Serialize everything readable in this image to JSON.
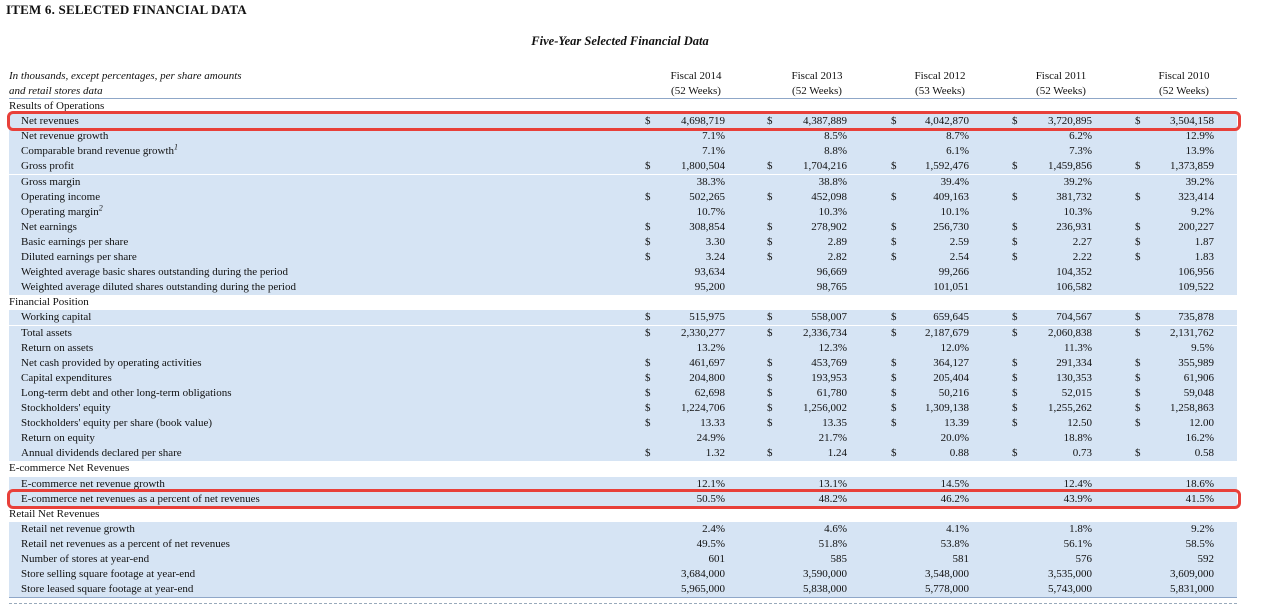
{
  "document": {
    "heading": "ITEM 6.  SELECTED FINANCIAL DATA",
    "subtitle": "Five-Year Selected Financial Data",
    "units_line1": "In thousands, except percentages, per share amounts",
    "units_line2": "and retail stores data",
    "columns": [
      {
        "year": "Fiscal 2014",
        "weeks": "(52 Weeks)"
      },
      {
        "year": "Fiscal 2013",
        "weeks": "(52 Weeks)"
      },
      {
        "year": "Fiscal 2012",
        "weeks": "(53 Weeks)"
      },
      {
        "year": "Fiscal 2011",
        "weeks": "(52 Weeks)"
      },
      {
        "year": "Fiscal 2010",
        "weeks": "(52 Weeks)"
      }
    ]
  },
  "table": {
    "rows": [
      {
        "section": true,
        "label": "Results of Operations"
      },
      {
        "label": "Net revenues",
        "dollar": true,
        "values": [
          "4,698,719",
          "4,387,889",
          "4,042,870",
          "3,720,895",
          "3,504,158"
        ]
      },
      {
        "label": "Net revenue growth",
        "values": [
          "7.1%",
          "8.5%",
          "8.7%",
          "6.2%",
          "12.9%"
        ]
      },
      {
        "label": "Comparable brand revenue growth",
        "sup": "1",
        "values": [
          "7.1%",
          "8.8%",
          "6.1%",
          "7.3%",
          "13.9%"
        ]
      },
      {
        "label": "Gross profit",
        "dollar": true,
        "values": [
          "1,800,504",
          "1,704,216",
          "1,592,476",
          "1,459,856",
          "1,373,859"
        ]
      },
      {
        "label": "Gross margin",
        "values": [
          "38.3%",
          "38.8%",
          "39.4%",
          "39.2%",
          "39.2%"
        ]
      },
      {
        "label": "Operating income",
        "dollar": true,
        "values": [
          "502,265",
          "452,098",
          "409,163",
          "381,732",
          "323,414"
        ]
      },
      {
        "label": "Operating margin",
        "sup": "2",
        "values": [
          "10.7%",
          "10.3%",
          "10.1%",
          "10.3%",
          "9.2%"
        ]
      },
      {
        "label": "Net earnings",
        "dollar": true,
        "values": [
          "308,854",
          "278,902",
          "256,730",
          "236,931",
          "200,227"
        ]
      },
      {
        "label": "Basic earnings per share",
        "dollar": true,
        "values": [
          "3.30",
          "2.89",
          "2.59",
          "2.27",
          "1.87"
        ]
      },
      {
        "label": "Diluted earnings per share",
        "dollar": true,
        "values": [
          "3.24",
          "2.82",
          "2.54",
          "2.22",
          "1.83"
        ]
      },
      {
        "label": "Weighted average basic shares outstanding during the period",
        "values": [
          "93,634",
          "96,669",
          "99,266",
          "104,352",
          "106,956"
        ]
      },
      {
        "label": "Weighted average diluted shares outstanding during the period",
        "values": [
          "95,200",
          "98,765",
          "101,051",
          "106,582",
          "109,522"
        ]
      },
      {
        "section": true,
        "label": "Financial Position"
      },
      {
        "label": "Working capital",
        "dollar": true,
        "values": [
          "515,975",
          "558,007",
          "659,645",
          "704,567",
          "735,878"
        ]
      },
      {
        "label": "Total assets",
        "dollar": true,
        "values": [
          "2,330,277",
          "2,336,734",
          "2,187,679",
          "2,060,838",
          "2,131,762"
        ]
      },
      {
        "label": "Return on assets",
        "values": [
          "13.2%",
          "12.3%",
          "12.0%",
          "11.3%",
          "9.5%"
        ]
      },
      {
        "label": "Net cash provided by operating activities",
        "dollar": true,
        "values": [
          "461,697",
          "453,769",
          "364,127",
          "291,334",
          "355,989"
        ]
      },
      {
        "label": "Capital expenditures",
        "dollar": true,
        "values": [
          "204,800",
          "193,953",
          "205,404",
          "130,353",
          "61,906"
        ]
      },
      {
        "label": "Long-term debt and other long-term obligations",
        "dollar": true,
        "values": [
          "62,698",
          "61,780",
          "50,216",
          "52,015",
          "59,048"
        ]
      },
      {
        "label": "Stockholders' equity",
        "dollar": true,
        "values": [
          "1,224,706",
          "1,256,002",
          "1,309,138",
          "1,255,262",
          "1,258,863"
        ]
      },
      {
        "label": "Stockholders' equity per share (book value)",
        "dollar": true,
        "values": [
          "13.33",
          "13.35",
          "13.39",
          "12.50",
          "12.00"
        ]
      },
      {
        "label": "Return on equity",
        "values": [
          "24.9%",
          "21.7%",
          "20.0%",
          "18.8%",
          "16.2%"
        ]
      },
      {
        "label": "Annual dividends declared per share",
        "dollar": true,
        "values": [
          "1.32",
          "1.24",
          "0.88",
          "0.73",
          "0.58"
        ]
      },
      {
        "section": true,
        "label": "E-commerce Net Revenues"
      },
      {
        "label": "E-commerce net revenue growth",
        "values": [
          "12.1%",
          "13.1%",
          "14.5%",
          "12.4%",
          "18.6%"
        ]
      },
      {
        "label": "E-commerce net revenues as a percent of net revenues",
        "values": [
          "50.5%",
          "48.2%",
          "46.2%",
          "43.9%",
          "41.5%"
        ]
      },
      {
        "section": true,
        "label": "Retail Net Revenues"
      },
      {
        "label": "Retail net revenue growth",
        "values": [
          "2.4%",
          "4.6%",
          "4.1%",
          "1.8%",
          "9.2%"
        ]
      },
      {
        "label": "Retail net revenues as a percent of net revenues",
        "values": [
          "49.5%",
          "51.8%",
          "53.8%",
          "56.1%",
          "58.5%"
        ]
      },
      {
        "label": "Number of stores at year-end",
        "values": [
          "601",
          "585",
          "581",
          "576",
          "592"
        ]
      },
      {
        "label": "Store selling square footage at year-end",
        "values": [
          "3,684,000",
          "3,590,000",
          "3,548,000",
          "3,535,000",
          "3,609,000"
        ]
      },
      {
        "label": "Store leased square footage at year-end",
        "values": [
          "5,965,000",
          "5,838,000",
          "5,778,000",
          "5,743,000",
          "5,831,000"
        ]
      }
    ],
    "dollar_sign": "$"
  },
  "annotations": {
    "highlight_color": "#e8403a",
    "highlighted_rows": [
      "Net revenues",
      "E-commerce net revenues as a percent of net revenues"
    ]
  }
}
